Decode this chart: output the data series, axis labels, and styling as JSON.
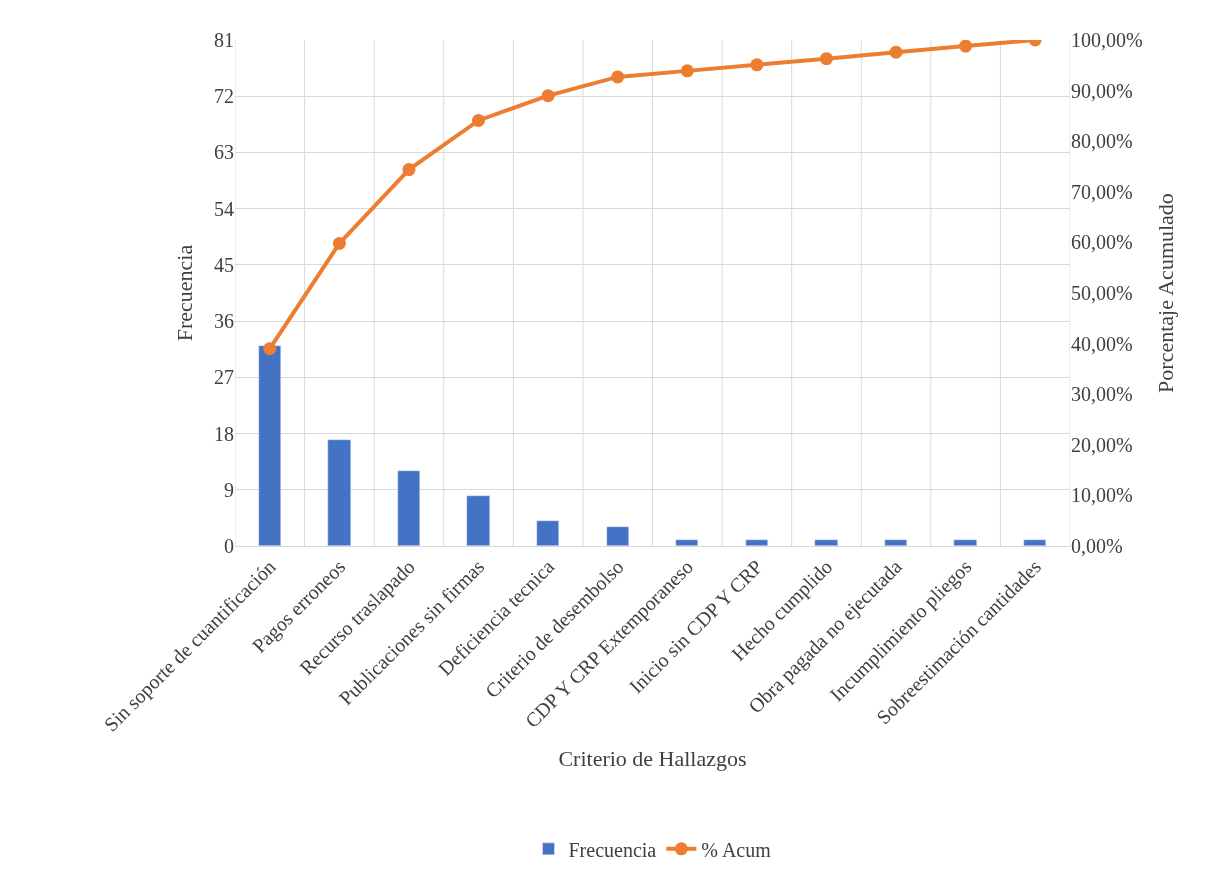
{
  "chart_data": {
    "type": "bar",
    "xlabel": "Criterio de Hallazgos",
    "ylabel": "Frecuencia",
    "y2label": "Porcentaje Acumulado",
    "categories": [
      "Sin soporte de cuantificación",
      "Pagos erroneos",
      "Recurso traslapado",
      "Publicaciones sin firmas",
      "Deficiencia tecnica",
      "Criterio de desembolso",
      "CDP Y CRP Extemporaneso",
      "Inicio sin CDP Y CRP",
      "Hecho cumplido",
      "Obra pagada no ejecutada",
      "Incumplimiento pliegos",
      "Sobreestimación cantidades"
    ],
    "series": [
      {
        "name": "Frecuencia",
        "color": "#4472c4",
        "values": [
          32,
          17,
          12,
          8,
          4,
          3,
          1,
          1,
          1,
          1,
          1,
          1
        ]
      },
      {
        "name": "% Acum",
        "type": "line",
        "axis": "y2",
        "color": "#ed7d31",
        "marker": "circle",
        "line_style": "solid",
        "values": [
          39.0,
          59.8,
          74.4,
          84.1,
          89.0,
          92.7,
          93.9,
          95.1,
          96.3,
          97.6,
          98.8,
          100
        ]
      }
    ],
    "ylim": [
      0,
      81
    ],
    "yticks": [
      0,
      9,
      18,
      27,
      36,
      45,
      54,
      63,
      72,
      81
    ],
    "y2lim": [
      0,
      100
    ],
    "y2ticks": [
      {
        "value": 0,
        "label": "0,00%"
      },
      {
        "value": 10,
        "label": "10,00%"
      },
      {
        "value": 20,
        "label": "20,00%"
      },
      {
        "value": 30,
        "label": "30,00%"
      },
      {
        "value": 40,
        "label": "40,00%"
      },
      {
        "value": 50,
        "label": "50,00%"
      },
      {
        "value": 60,
        "label": "60,00%"
      },
      {
        "value": 70,
        "label": "70,00%"
      },
      {
        "value": 80,
        "label": "80,00%"
      },
      {
        "value": 90,
        "label": "90,00%"
      },
      {
        "value": 100,
        "label": "100,00%"
      }
    ],
    "grid": true,
    "legend": "bottom"
  }
}
